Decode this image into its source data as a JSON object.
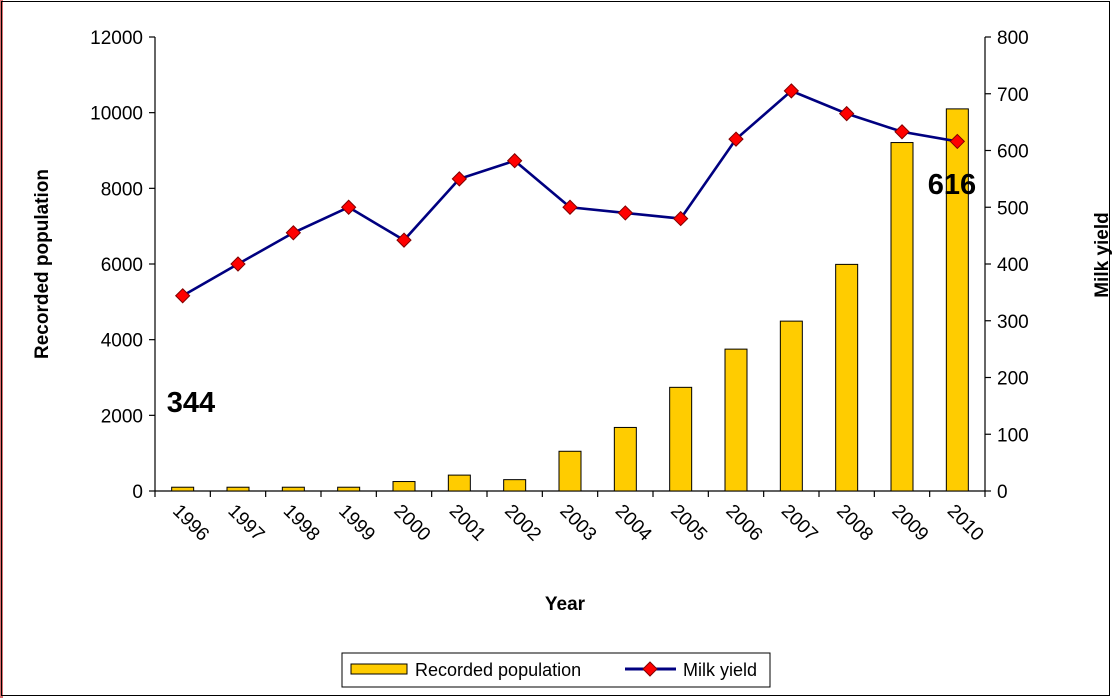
{
  "chart_data": {
    "type": "bar",
    "categories": [
      "1996",
      "1997",
      "1998",
      "1999",
      "2000",
      "2001",
      "2002",
      "2003",
      "2004",
      "2005",
      "2006",
      "2007",
      "2008",
      "2009",
      "2010"
    ],
    "series": [
      {
        "name": "Recorded population",
        "type": "bar",
        "axis": "left",
        "color": "#ffcc00",
        "values": [
          100,
          100,
          100,
          100,
          250,
          420,
          300,
          1050,
          1680,
          2740,
          3750,
          4490,
          5990,
          9210,
          10100
        ]
      },
      {
        "name": "Milk yield",
        "type": "line",
        "axis": "right",
        "line_color": "#000080",
        "marker_color": "#ff0000",
        "marker": "diamond",
        "values": [
          344,
          400,
          455,
          500,
          442,
          550,
          582,
          500,
          490,
          480,
          620,
          705,
          665,
          633,
          616
        ]
      }
    ],
    "xlabel": "Year",
    "ylabel": "Recorded population",
    "y2label": "Milk yield",
    "ylim": [
      0,
      12000
    ],
    "y2lim": [
      0,
      800
    ],
    "yticks": [
      "0",
      "2000",
      "4000",
      "6000",
      "8000",
      "10000",
      "12000"
    ],
    "y2ticks": [
      "0",
      "100",
      "200",
      "300",
      "400",
      "500",
      "600",
      "700",
      "800"
    ],
    "annotations": [
      {
        "text": "344",
        "category": "1996"
      },
      {
        "text": "616",
        "category": "2010"
      }
    ],
    "legend": {
      "placement": "bottom-center",
      "entries": [
        "Recorded population",
        "Milk yield"
      ]
    },
    "grid": false
  }
}
